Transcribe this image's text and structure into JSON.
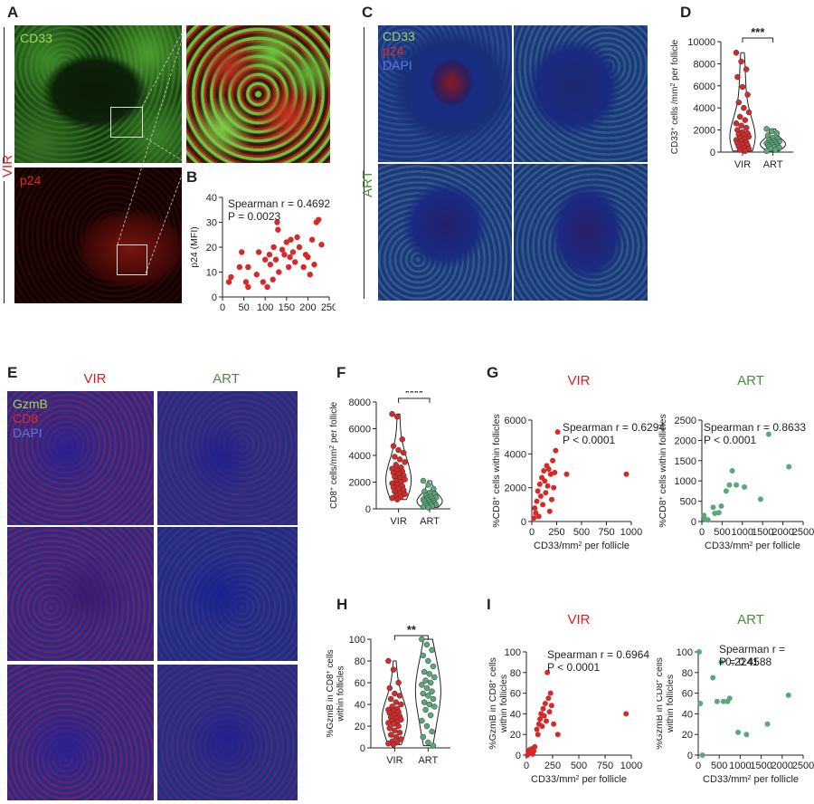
{
  "panels": {
    "A": {
      "letter": "A",
      "row_label": "VIR",
      "channels": [
        "CD33",
        "p24"
      ]
    },
    "B": {
      "letter": "B",
      "stat_line1": "Spearman r = 0.4692",
      "stat_line2": "P = 0.0023"
    },
    "C": {
      "letter": "C",
      "row_label": "ART",
      "channels": [
        "CD33",
        "p24",
        "DAPI"
      ]
    },
    "D": {
      "letter": "D",
      "significance": "***"
    },
    "E": {
      "letter": "E",
      "col_labels": [
        "VIR",
        "ART"
      ],
      "channels": [
        "GzmB",
        "CD8",
        "DAPI"
      ]
    },
    "F": {
      "letter": "F",
      "significance": "****"
    },
    "G": {
      "letter": "G",
      "vir": {
        "title": "VIR",
        "stat_line1": "Spearman r = 0.6294",
        "stat_line2": "P < 0.0001"
      },
      "art": {
        "title": "ART",
        "stat_line1": "Spearman r = 0.8633",
        "stat_line2": "P < 0.0001"
      }
    },
    "H": {
      "letter": "H",
      "significance": "**"
    },
    "I": {
      "letter": "I",
      "vir": {
        "title": "VIR",
        "stat_line1": "Spearman r = 0.6964",
        "stat_line2": "P < 0.0001"
      },
      "art": {
        "title": "ART",
        "stat_line1": "Spearman r = −0.2241",
        "stat_line2": "P = 0.4588"
      }
    }
  },
  "colors": {
    "vir_red": "#d62020",
    "art_green": "#4a8a3a",
    "point_red": "#d42a2a",
    "point_green": "#5aa878"
  },
  "chart_data": [
    {
      "id": "B",
      "type": "scatter",
      "xlabel": "CD33/mm2 per Follicle",
      "ylabel": "p24 (MFI)",
      "xlim": [
        0,
        250
      ],
      "ylim": [
        0,
        40
      ],
      "xticks": [
        "0",
        "50",
        "100",
        "150",
        "200",
        "250"
      ],
      "yticks": [
        "0",
        "10",
        "20",
        "30",
        "40"
      ],
      "points": [
        [
          15,
          6
        ],
        [
          20,
          8
        ],
        [
          40,
          12
        ],
        [
          45,
          18
        ],
        [
          55,
          6
        ],
        [
          60,
          4
        ],
        [
          60,
          12
        ],
        [
          80,
          9
        ],
        [
          85,
          18
        ],
        [
          95,
          6
        ],
        [
          100,
          15
        ],
        [
          105,
          4
        ],
        [
          110,
          17
        ],
        [
          112,
          13
        ],
        [
          118,
          7
        ],
        [
          120,
          20
        ],
        [
          125,
          15
        ],
        [
          128,
          30
        ],
        [
          130,
          27
        ],
        [
          132,
          10
        ],
        [
          140,
          19
        ],
        [
          145,
          17
        ],
        [
          150,
          22
        ],
        [
          155,
          12
        ],
        [
          158,
          16
        ],
        [
          160,
          23
        ],
        [
          165,
          18
        ],
        [
          170,
          14
        ],
        [
          175,
          24
        ],
        [
          180,
          20
        ],
        [
          190,
          12
        ],
        [
          195,
          17
        ],
        [
          200,
          16
        ],
        [
          205,
          9
        ],
        [
          210,
          23
        ],
        [
          215,
          13
        ],
        [
          220,
          30
        ],
        [
          225,
          31
        ],
        [
          232,
          21
        ]
      ]
    },
    {
      "id": "D",
      "type": "scatter",
      "ylabel": "CD33+ cells /mm2 per follicle",
      "categories": [
        "VIR",
        "ART"
      ],
      "ylim": [
        0,
        10000
      ],
      "yticks": [
        "0",
        "2000",
        "4000",
        "6000",
        "8000",
        "10000"
      ],
      "series": [
        {
          "name": "VIR",
          "values": [
            9000,
            8200,
            7500,
            6800,
            5900,
            5200,
            4500,
            4000,
            3600,
            3200,
            2900,
            2600,
            2400,
            2200,
            2000,
            1800,
            1700,
            1600,
            1500,
            1400,
            1300,
            1200,
            1100,
            1000,
            900,
            800,
            700,
            600,
            500,
            400,
            300,
            200,
            100
          ]
        },
        {
          "name": "ART",
          "values": [
            2100,
            1900,
            1700,
            1500,
            1300,
            1200,
            1100,
            1000,
            950,
            900,
            850,
            800,
            750,
            700,
            650,
            600,
            550,
            500,
            450,
            400,
            300,
            200,
            100
          ]
        }
      ]
    },
    {
      "id": "F",
      "type": "scatter",
      "ylabel": "CD8+ cells/mm2 per follicle",
      "categories": [
        "VIR",
        "ART"
      ],
      "ylim": [
        0,
        8000
      ],
      "yticks": [
        "0",
        "2000",
        "4000",
        "6000",
        "8000"
      ],
      "series": [
        {
          "name": "VIR",
          "values": [
            7100,
            6900,
            5200,
            4700,
            4400,
            4200,
            3900,
            3700,
            3500,
            3300,
            3100,
            3000,
            2900,
            2800,
            2700,
            2600,
            2500,
            2400,
            2300,
            2200,
            2100,
            2000,
            1900,
            1800,
            1700,
            1600,
            1500,
            1400,
            1300,
            1200,
            1100,
            1000,
            900,
            800,
            700
          ]
        },
        {
          "name": "ART",
          "values": [
            2100,
            1800,
            1500,
            1300,
            1200,
            1100,
            1000,
            900,
            850,
            800,
            750,
            700,
            650,
            600,
            550,
            500,
            450,
            400,
            350,
            300,
            250,
            200,
            150,
            100
          ]
        }
      ]
    },
    {
      "id": "G-VIR",
      "type": "scatter",
      "xlabel": "CD33/mm2 per follicle",
      "ylabel": "%CD8+ cells within follicles",
      "xlim": [
        0,
        1000
      ],
      "ylim": [
        0,
        6000
      ],
      "xticks": [
        "0",
        "250",
        "500",
        "750",
        "1000"
      ],
      "yticks": [
        "0",
        "2000",
        "4000",
        "6000"
      ],
      "points": [
        [
          20,
          200
        ],
        [
          30,
          800
        ],
        [
          40,
          500
        ],
        [
          50,
          1200
        ],
        [
          60,
          1800
        ],
        [
          70,
          300
        ],
        [
          80,
          2200
        ],
        [
          90,
          1500
        ],
        [
          100,
          2600
        ],
        [
          110,
          1000
        ],
        [
          120,
          3000
        ],
        [
          130,
          2400
        ],
        [
          140,
          1700
        ],
        [
          150,
          3300
        ],
        [
          160,
          2100
        ],
        [
          170,
          3100
        ],
        [
          180,
          600
        ],
        [
          190,
          2800
        ],
        [
          200,
          1300
        ],
        [
          210,
          3600
        ],
        [
          220,
          2000
        ],
        [
          230,
          2900
        ],
        [
          240,
          4200
        ],
        [
          260,
          5300
        ],
        [
          350,
          2800
        ],
        [
          950,
          2800
        ]
      ]
    },
    {
      "id": "G-ART",
      "type": "scatter",
      "xlabel": "CD33/mm2 per follicle",
      "ylabel": "%CD8+ cells within follicles",
      "xlim": [
        0,
        2500
      ],
      "ylim": [
        0,
        2500
      ],
      "xticks": [
        "0",
        "500",
        "1000",
        "1500",
        "2000",
        "2500"
      ],
      "yticks": [
        "0",
        "500",
        "1000",
        "1500",
        "2000",
        "2500"
      ],
      "points": [
        [
          50,
          150
        ],
        [
          80,
          60
        ],
        [
          150,
          40
        ],
        [
          280,
          350
        ],
        [
          320,
          200
        ],
        [
          420,
          220
        ],
        [
          480,
          380
        ],
        [
          600,
          750
        ],
        [
          680,
          900
        ],
        [
          750,
          1250
        ],
        [
          850,
          900
        ],
        [
          1050,
          850
        ],
        [
          1450,
          550
        ],
        [
          1650,
          2150
        ],
        [
          2150,
          1350
        ]
      ]
    },
    {
      "id": "H",
      "type": "scatter",
      "ylabel": "%GzmB in CD8+ cells within follicles",
      "categories": [
        "VIR",
        "ART"
      ],
      "ylim": [
        0,
        100
      ],
      "yticks": [
        "0",
        "20",
        "40",
        "60",
        "80",
        "100"
      ],
      "series": [
        {
          "name": "VIR",
          "values": [
            80,
            72,
            60,
            55,
            50,
            48,
            45,
            42,
            40,
            38,
            36,
            35,
            34,
            33,
            32,
            30,
            29,
            28,
            27,
            26,
            25,
            24,
            23,
            22,
            20,
            18,
            16,
            14,
            12,
            10,
            8,
            6,
            5,
            4,
            3
          ]
        },
        {
          "name": "ART",
          "values": [
            100,
            95,
            90,
            85,
            80,
            75,
            70,
            68,
            65,
            62,
            60,
            58,
            55,
            52,
            50,
            48,
            45,
            42,
            40,
            38,
            35,
            30,
            25,
            20,
            15,
            10,
            5,
            2
          ]
        }
      ]
    },
    {
      "id": "I-VIR",
      "type": "scatter",
      "xlabel": "CD33/mm2 per follicle",
      "ylabel": "%GzmB in CD8+ cells within follicles",
      "xlim": [
        0,
        1000
      ],
      "ylim": [
        0,
        100
      ],
      "xticks": [
        "0",
        "250",
        "500",
        "750",
        "1000"
      ],
      "yticks": [
        "0",
        "20",
        "40",
        "60",
        "80",
        "100"
      ],
      "points": [
        [
          10,
          0
        ],
        [
          20,
          2
        ],
        [
          30,
          5
        ],
        [
          40,
          3
        ],
        [
          50,
          6
        ],
        [
          60,
          1
        ],
        [
          70,
          4
        ],
        [
          80,
          8
        ],
        [
          100,
          25
        ],
        [
          110,
          20
        ],
        [
          120,
          30
        ],
        [
          130,
          35
        ],
        [
          140,
          40
        ],
        [
          150,
          28
        ],
        [
          160,
          45
        ],
        [
          170,
          38
        ],
        [
          180,
          50
        ],
        [
          190,
          33
        ],
        [
          200,
          80
        ],
        [
          210,
          55
        ],
        [
          220,
          42
        ],
        [
          230,
          60
        ],
        [
          240,
          48
        ],
        [
          260,
          30
        ],
        [
          300,
          20
        ],
        [
          950,
          40
        ]
      ]
    },
    {
      "id": "I-ART",
      "type": "scatter",
      "xlabel": "CD33/mm2 per follicle",
      "ylabel": "%GzmB in CD8+ cells within follicles",
      "xlim": [
        0,
        2500
      ],
      "ylim": [
        0,
        100
      ],
      "xticks": [
        "0",
        "500",
        "1000",
        "1500",
        "2000",
        "2500"
      ],
      "yticks": [
        "0",
        "20",
        "40",
        "60",
        "80",
        "100"
      ],
      "points": [
        [
          20,
          100
        ],
        [
          50,
          50
        ],
        [
          100,
          0
        ],
        [
          350,
          75
        ],
        [
          450,
          52
        ],
        [
          550,
          90
        ],
        [
          600,
          52
        ],
        [
          700,
          52
        ],
        [
          750,
          55
        ],
        [
          950,
          22
        ],
        [
          1150,
          20
        ],
        [
          1650,
          30
        ],
        [
          2150,
          58
        ]
      ]
    }
  ]
}
